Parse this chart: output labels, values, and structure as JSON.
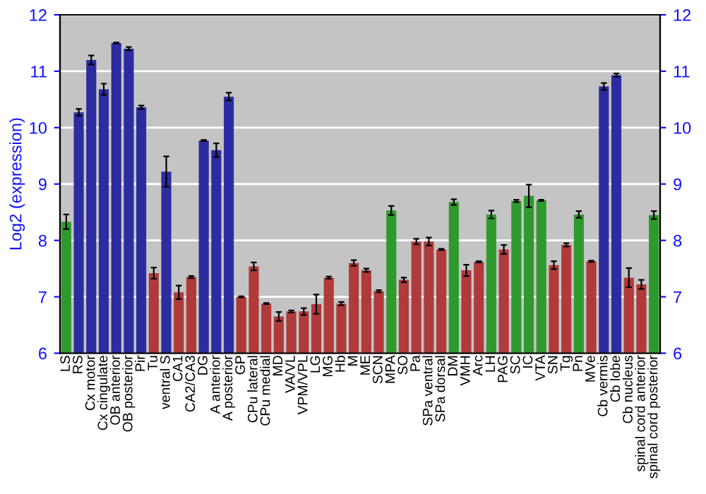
{
  "chart_data": {
    "type": "bar",
    "ylabel": "Log2 (expression)",
    "categories": [
      "LS",
      "RS",
      "Cx motor",
      "Cx cingulate",
      "OB anterior",
      "OB posterior",
      "Pir",
      "Tu",
      "ventral S",
      "CA1",
      "CA2/CA3",
      "DG",
      "A anterior",
      "A posterior",
      "GP",
      "CPu lateral",
      "CPu medial",
      "MD",
      "VA/VL",
      "VPM/VPL",
      "LG",
      "MG",
      "Hb",
      "M",
      "ME",
      "SCN",
      "MPA",
      "SO",
      "Pa",
      "SPa ventral",
      "SPa dorsal",
      "DM",
      "VMH",
      "Arc",
      "LH",
      "PAG",
      "SC",
      "IC",
      "VTA",
      "SN",
      "Tg",
      "Pn",
      "MVe",
      "Cb vermis",
      "Cb lobe",
      "Cb nucleus",
      "spinal cord anterior",
      "spinal cord posterior"
    ],
    "values": [
      8.33,
      10.27,
      11.2,
      10.68,
      11.5,
      11.4,
      10.36,
      7.42,
      9.22,
      7.08,
      7.35,
      9.77,
      9.6,
      10.55,
      7.0,
      7.54,
      6.88,
      6.65,
      6.74,
      6.74,
      6.87,
      7.34,
      6.88,
      7.6,
      7.47,
      7.1,
      8.53,
      7.3,
      7.98,
      7.98,
      7.84,
      8.68,
      7.47,
      7.62,
      8.46,
      7.84,
      8.7,
      8.79,
      8.71,
      7.56,
      7.92,
      8.46,
      7.63,
      10.73,
      10.93,
      7.34,
      7.22,
      8.45
    ],
    "errors": [
      0.13,
      0.06,
      0.08,
      0.1,
      0.01,
      0.03,
      0.03,
      0.1,
      0.27,
      0.12,
      0.02,
      0.01,
      0.12,
      0.07,
      0.01,
      0.07,
      0.01,
      0.08,
      0.02,
      0.06,
      0.17,
      0.02,
      0.03,
      0.05,
      0.03,
      0.02,
      0.08,
      0.04,
      0.05,
      0.07,
      0.01,
      0.05,
      0.1,
      0.01,
      0.07,
      0.08,
      0.02,
      0.2,
      0.01,
      0.07,
      0.03,
      0.06,
      0.01,
      0.06,
      0.03,
      0.17,
      0.08,
      0.07
    ],
    "colors": [
      "#2e9a2e",
      "#2c2ca0",
      "#2c2ca0",
      "#2c2ca0",
      "#2c2ca0",
      "#2c2ca0",
      "#2c2ca0",
      "#b03a3a",
      "#2c2ca0",
      "#b03a3a",
      "#b03a3a",
      "#2c2ca0",
      "#2c2ca0",
      "#2c2ca0",
      "#b03a3a",
      "#b03a3a",
      "#b03a3a",
      "#b03a3a",
      "#b03a3a",
      "#b03a3a",
      "#b03a3a",
      "#b03a3a",
      "#b03a3a",
      "#b03a3a",
      "#b03a3a",
      "#b03a3a",
      "#2e9a2e",
      "#b03a3a",
      "#b03a3a",
      "#b03a3a",
      "#b03a3a",
      "#2e9a2e",
      "#b03a3a",
      "#b03a3a",
      "#2e9a2e",
      "#b03a3a",
      "#2e9a2e",
      "#2e9a2e",
      "#2e9a2e",
      "#b03a3a",
      "#b03a3a",
      "#2e9a2e",
      "#b03a3a",
      "#2c2ca0",
      "#2c2ca0",
      "#b03a3a",
      "#b03a3a",
      "#2e9a2e"
    ],
    "ylim": [
      6,
      12
    ],
    "yticks": [
      6,
      7,
      8,
      9,
      10,
      11,
      12
    ],
    "y2lim": [
      6,
      12
    ],
    "y2ticks": [
      6,
      7,
      8,
      9,
      10,
      11,
      12
    ],
    "grid": "y"
  }
}
